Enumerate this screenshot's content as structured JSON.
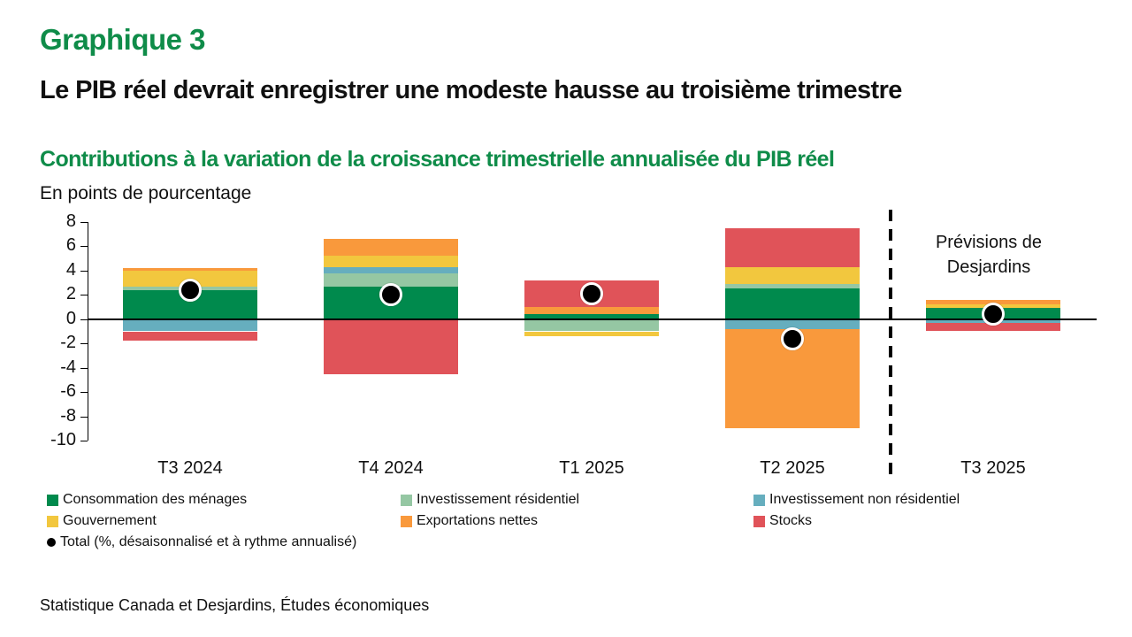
{
  "header": {
    "chart_label": "Graphique 3",
    "title": "Le PIB réel devrait enregistrer une modeste hausse au troisième trimestre",
    "subtitle": "Contributions à la variation de la croissance trimestrielle annualisée du PIB réel",
    "unit_label": "En points de pourcentage"
  },
  "annotation": {
    "forecast_line1": "Prévisions de",
    "forecast_line2": "Desjardins"
  },
  "source": "Statistique Canada et Desjardins, Études économiques",
  "colors": {
    "title_green": "#0F8C49",
    "consumption_green": "#008A4D",
    "residential_light_green": "#95C7A3",
    "nonresidential_teal": "#66AEBE",
    "government_yellow": "#F2C73E",
    "net_exports_orange": "#F9993C",
    "stocks_red": "#E05359",
    "total_black": "#000000"
  },
  "chart_data": {
    "type": "bar",
    "stacked": true,
    "title": "Contributions à la variation de la croissance trimestrielle annualisée du PIB réel",
    "ylabel": "En points de pourcentage",
    "xlabel": "",
    "grid": false,
    "legend_position": "bottom",
    "categories": [
      "T3 2024",
      "T4 2024",
      "T1 2025",
      "T2 2025",
      "T3 2025"
    ],
    "series": [
      {
        "name": "Consommation des ménages",
        "color": "#008A4D",
        "values": [
          2.4,
          2.7,
          0.4,
          2.5,
          0.9
        ]
      },
      {
        "name": "Investissement résidentiel",
        "color": "#95C7A3",
        "values": [
          0.3,
          1.1,
          -1.0,
          0.4,
          0.0
        ]
      },
      {
        "name": "Investissement non résidentiel",
        "color": "#66AEBE",
        "values": [
          -1.0,
          0.5,
          0.0,
          -0.8,
          -0.3
        ]
      },
      {
        "name": "Gouvernement",
        "color": "#F2C73E",
        "values": [
          1.3,
          0.9,
          -0.4,
          1.4,
          0.3
        ]
      },
      {
        "name": "Exportations nettes",
        "color": "#F9993C",
        "values": [
          0.2,
          1.4,
          0.6,
          -8.2,
          0.4
        ]
      },
      {
        "name": "Stocks",
        "color": "#E05359",
        "values": [
          -0.8,
          -4.5,
          2.2,
          3.2,
          -0.7
        ]
      }
    ],
    "total_series": {
      "name": "Total (%, désaisonnalisé et à rythme annualisé)",
      "color": "#000000",
      "values": [
        2.4,
        2.0,
        2.1,
        -1.6,
        0.4
      ]
    },
    "ylim": [
      -10,
      8
    ],
    "yticks": [
      8,
      6,
      4,
      2,
      0,
      -2,
      -4,
      -6,
      -8,
      -10
    ],
    "forecast_category": "T3 2025"
  },
  "legend": {
    "items": [
      {
        "label": "Consommation des ménages",
        "color": "#008A4D",
        "symbol": "swatch",
        "row": 0,
        "col": 0
      },
      {
        "label": "Investissement résidentiel",
        "color": "#95C7A3",
        "symbol": "swatch",
        "row": 0,
        "col": 1
      },
      {
        "label": "Investissement non résidentiel",
        "color": "#66AEBE",
        "symbol": "swatch",
        "row": 0,
        "col": 2
      },
      {
        "label": "Gouvernement",
        "color": "#F2C73E",
        "symbol": "swatch",
        "row": 1,
        "col": 0
      },
      {
        "label": "Exportations nettes",
        "color": "#F9993C",
        "symbol": "swatch",
        "row": 1,
        "col": 1
      },
      {
        "label": "Stocks",
        "color": "#E05359",
        "symbol": "swatch",
        "row": 1,
        "col": 2
      },
      {
        "label": "Total (%, désaisonnalisé et à rythme annualisé)",
        "color": "#000000",
        "symbol": "dot",
        "row": 2,
        "col": 0
      }
    ]
  }
}
